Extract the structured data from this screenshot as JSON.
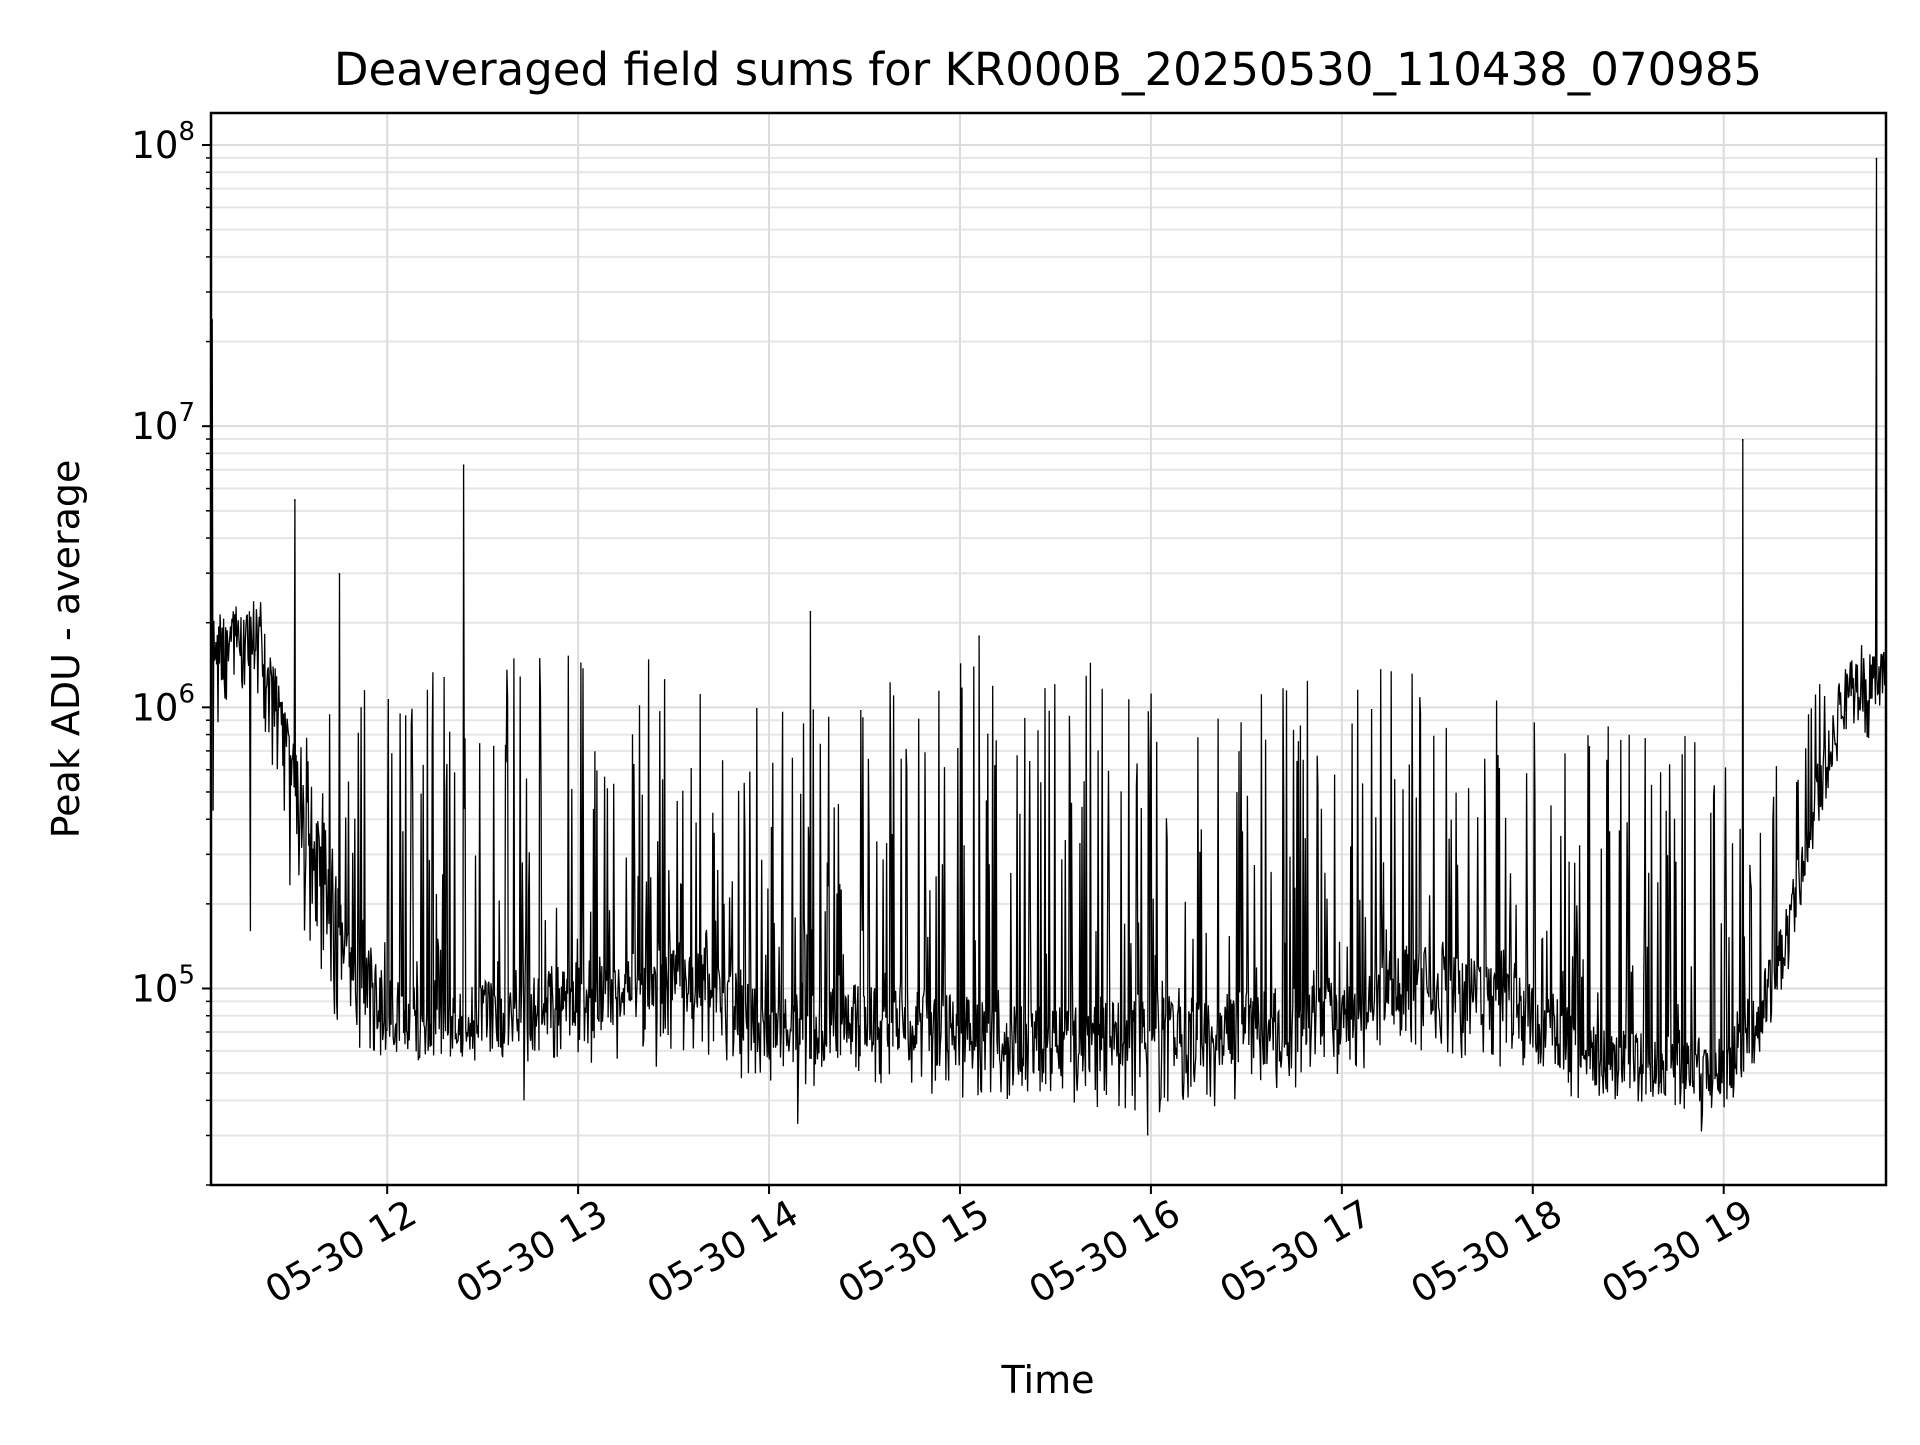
{
  "chart_data": {
    "type": "line",
    "title": "Deaveraged field sums for KR000B_20250530_110438_070985",
    "xlabel": "Time",
    "ylabel": "Peak ADU - average",
    "y_scale": "log",
    "ylim": [
      20000,
      130000000
    ],
    "xlim": [
      "2025-05-30 11:04:38",
      "2025-05-30 19:51:00"
    ],
    "x_ticks": [
      {
        "time": "2025-05-30 12:00",
        "label": "05-30 12"
      },
      {
        "time": "2025-05-30 13:00",
        "label": "05-30 13"
      },
      {
        "time": "2025-05-30 14:00",
        "label": "05-30 14"
      },
      {
        "time": "2025-05-30 15:00",
        "label": "05-30 15"
      },
      {
        "time": "2025-05-30 16:00",
        "label": "05-30 16"
      },
      {
        "time": "2025-05-30 17:00",
        "label": "05-30 17"
      },
      {
        "time": "2025-05-30 18:00",
        "label": "05-30 18"
      },
      {
        "time": "2025-05-30 19:00",
        "label": "05-30 19"
      }
    ],
    "y_ticks": [
      {
        "value": 100000,
        "base": "10",
        "exp": "5"
      },
      {
        "value": 1000000,
        "base": "10",
        "exp": "6"
      },
      {
        "value": 10000000,
        "base": "10",
        "exp": "7"
      },
      {
        "value": 100000000,
        "base": "10",
        "exp": "8"
      }
    ],
    "grid": true,
    "line_color": "#000000",
    "series": [
      {
        "envelope": {
          "times": [
            "2025-05-30 11:04:38",
            "2025-05-30 11:10",
            "2025-05-30 11:20",
            "2025-05-30 11:30",
            "2025-05-30 11:40",
            "2025-05-30 11:50",
            "2025-05-30 12:00",
            "2025-05-30 12:20",
            "2025-05-30 12:40",
            "2025-05-30 13:00",
            "2025-05-30 13:20",
            "2025-05-30 13:40",
            "2025-05-30 14:00",
            "2025-05-30 14:20",
            "2025-05-30 14:40",
            "2025-05-30 15:00",
            "2025-05-30 15:20",
            "2025-05-30 15:40",
            "2025-05-30 16:00",
            "2025-05-30 16:20",
            "2025-05-30 16:40",
            "2025-05-30 17:00",
            "2025-05-30 17:20",
            "2025-05-30 17:40",
            "2025-05-30 18:00",
            "2025-05-30 18:20",
            "2025-05-30 18:40",
            "2025-05-30 19:00",
            "2025-05-30 19:10",
            "2025-05-30 19:20",
            "2025-05-30 19:30",
            "2025-05-30 19:40",
            "2025-05-30 19:51"
          ],
          "base": [
            1300000,
            1700000,
            1800000,
            600000,
            250000,
            120000,
            80000,
            75000,
            85000,
            95000,
            100000,
            110000,
            70000,
            75000,
            80000,
            70000,
            65000,
            65000,
            70000,
            70000,
            75000,
            80000,
            110000,
            100000,
            80000,
            55000,
            50000,
            50000,
            70000,
            150000,
            500000,
            1100000,
            1200000
          ],
          "high": [
            2000000,
            2300000,
            2200000,
            800000,
            1000000,
            1300000,
            1400000,
            1500000,
            1500000,
            1550000,
            1550000,
            1550000,
            900000,
            1300000,
            1400000,
            1450000,
            1500000,
            1450000,
            1350000,
            1200000,
            1200000,
            1400000,
            1350000,
            1200000,
            1000000,
            900000,
            850000,
            800000,
            500000,
            700000,
            1500000,
            1900000,
            1800000
          ],
          "low": [
            350000,
            1100000,
            1000000,
            200000,
            90000,
            60000,
            55000,
            55000,
            55000,
            55000,
            50000,
            50000,
            45000,
            45000,
            45000,
            40000,
            40000,
            38000,
            35000,
            38000,
            42000,
            45000,
            60000,
            55000,
            45000,
            38000,
            35000,
            35000,
            55000,
            100000,
            400000,
            900000,
            600000
          ]
        },
        "spikes": [
          {
            "time": "2025-05-30 11:05",
            "value": 24000000
          },
          {
            "time": "2025-05-30 11:31",
            "value": 5500000
          },
          {
            "time": "2025-05-30 11:45",
            "value": 3000000
          },
          {
            "time": "2025-05-30 12:24",
            "value": 7300000
          },
          {
            "time": "2025-05-30 14:13",
            "value": 2200000
          },
          {
            "time": "2025-05-30 15:06",
            "value": 1800000
          },
          {
            "time": "2025-05-30 19:06",
            "value": 9000000
          },
          {
            "time": "2025-05-30 19:48",
            "value": 90000000
          }
        ],
        "dips": [
          {
            "time": "2025-05-30 11:17",
            "value": 160000
          },
          {
            "time": "2025-05-30 12:43",
            "value": 40000
          },
          {
            "time": "2025-05-30 14:09",
            "value": 33000
          },
          {
            "time": "2025-05-30 15:59",
            "value": 30000
          },
          {
            "time": "2025-05-30 18:53",
            "value": 31000
          }
        ]
      }
    ]
  }
}
